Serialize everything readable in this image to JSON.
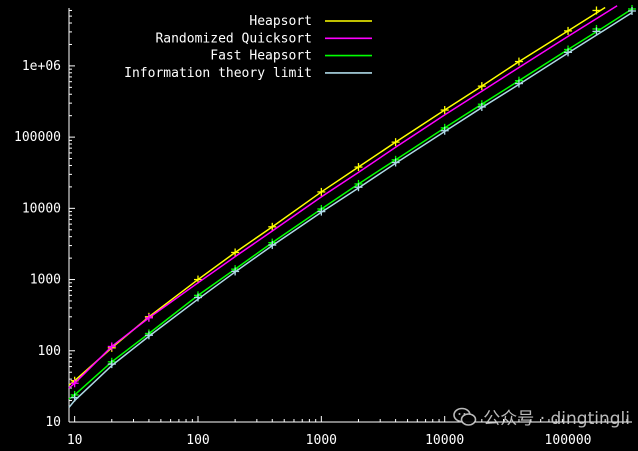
{
  "chart_data": {
    "type": "line",
    "title": "",
    "xlabel": "",
    "ylabel": "",
    "x_scale": "log",
    "y_scale": "log",
    "xlim": [
      9,
      330000
    ],
    "ylim": [
      10,
      6500000
    ],
    "x_ticks": [
      10,
      100,
      1000,
      10000,
      100000
    ],
    "x_tick_labels": [
      "10",
      "100",
      "1000",
      "10000",
      "100000"
    ],
    "y_ticks": [
      10,
      100,
      1000,
      10000,
      100000,
      1000000
    ],
    "y_tick_labels": [
      "10",
      "100",
      "1000",
      "10000",
      "100000",
      "1e+06"
    ],
    "grid": false,
    "legend_position": "top-left",
    "series": [
      {
        "name": "Heapsort",
        "color": "#ffff00",
        "line": {
          "x": [
            9,
            10,
            20,
            40,
            100,
            200,
            400,
            1000,
            2000,
            4000,
            10000,
            20000,
            40000,
            100000,
            200000
          ],
          "y": [
            33,
            38,
            110,
            300,
            1000,
            2400,
            5500,
            17000,
            38000,
            85000,
            240000,
            520000,
            1150000,
            3100000,
            6600000
          ]
        },
        "points": {
          "x": [
            10,
            20,
            40,
            100,
            200,
            400,
            1000,
            2000,
            4000,
            10000,
            20000,
            40000,
            100000,
            170000
          ],
          "y": [
            38,
            110,
            300,
            1000,
            2400,
            5500,
            17000,
            38000,
            85000,
            240000,
            520000,
            1150000,
            3100000,
            6000000
          ]
        }
      },
      {
        "name": "Randomized Quicksort",
        "color": "#ff00ff",
        "line": {
          "x": [
            9,
            10,
            20,
            40,
            100,
            200,
            400,
            1000,
            2000,
            4000,
            10000,
            20000,
            40000,
            100000,
            250000
          ],
          "y": [
            30,
            35,
            115,
            290,
            900,
            2100,
            4800,
            14500,
            32000,
            72000,
            205000,
            440000,
            950000,
            2600000,
            7000000
          ]
        },
        "points": {
          "x": [
            10,
            20,
            40
          ],
          "y": [
            35,
            115,
            290
          ]
        }
      },
      {
        "name": "Fast Heapsort",
        "color": "#00ff00",
        "line": {
          "x": [
            9,
            10,
            20,
            40,
            100,
            200,
            400,
            1000,
            2000,
            4000,
            10000,
            20000,
            40000,
            100000,
            200000,
            330000
          ],
          "y": [
            21,
            24,
            70,
            175,
            600,
            1400,
            3300,
            9800,
            22000,
            48000,
            135000,
            290000,
            620000,
            1700000,
            3600000,
            6300000
          ]
        },
        "points": {
          "x": [
            10,
            20,
            40,
            100,
            200,
            400,
            1000,
            2000,
            4000,
            10000,
            20000,
            40000,
            100000,
            170000,
            330000
          ],
          "y": [
            24,
            70,
            175,
            600,
            1400,
            3300,
            9800,
            22000,
            48000,
            135000,
            290000,
            620000,
            1700000,
            3300000,
            6300000
          ]
        }
      },
      {
        "name": "Information theory limit",
        "color": "#add8e6",
        "line": {
          "x": [
            9,
            10,
            20,
            40,
            100,
            200,
            400,
            1000,
            2000,
            4000,
            10000,
            20000,
            40000,
            100000,
            200000,
            330000
          ],
          "y": [
            16,
            20,
            62,
            160,
            530,
            1280,
            3000,
            8800,
            19300,
            43000,
            120000,
            260000,
            550000,
            1520000,
            3230000,
            5600000
          ]
        },
        "points": {
          "x": [
            10,
            20,
            40,
            100,
            200,
            400,
            1000,
            2000,
            4000,
            10000,
            20000,
            40000,
            100000,
            170000,
            330000
          ],
          "y": [
            22,
            65,
            165,
            560,
            1300,
            3050,
            9000,
            19800,
            44000,
            123000,
            265000,
            565000,
            1550000,
            3050000,
            5900000
          ]
        }
      }
    ]
  },
  "watermark": {
    "text": "公众号 · dingtingli"
  }
}
